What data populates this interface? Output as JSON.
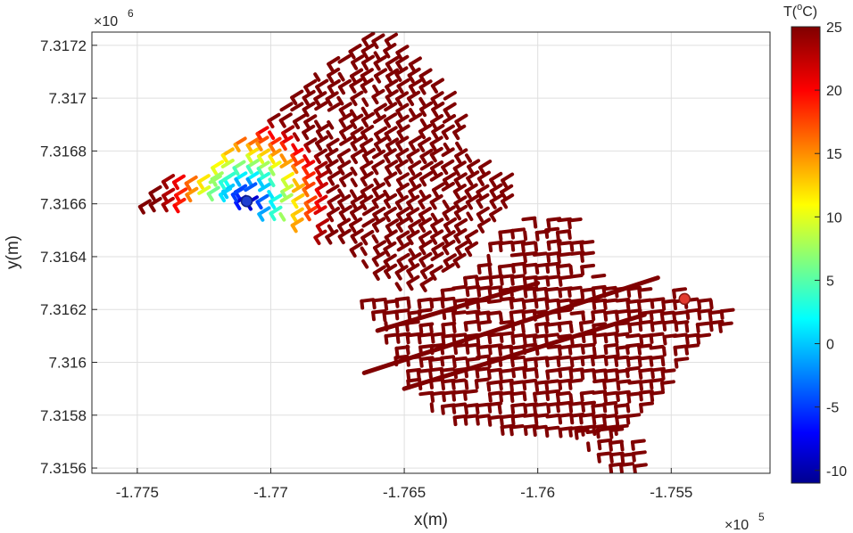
{
  "chart_data": {
    "type": "heatmap",
    "xlabel": "x(m)",
    "ylabel": "y(m)",
    "x_multiplier": {
      "base": "×10",
      "exp": "5"
    },
    "y_multiplier": {
      "base": "×10",
      "exp": "6"
    },
    "xlim": [
      -1.7767,
      -1.7513
    ],
    "ylim": [
      7.31558,
      7.31725
    ],
    "xticks": [
      -1.775,
      -1.77,
      -1.765,
      -1.76,
      -1.755
    ],
    "xtick_labels": [
      "-1.775",
      "-1.77",
      "-1.765",
      "-1.76",
      "-1.755"
    ],
    "yticks": [
      7.3156,
      7.3158,
      7.316,
      7.3162,
      7.3164,
      7.3166,
      7.3168,
      7.317,
      7.3172
    ],
    "ytick_labels": [
      "7.3156",
      "7.3158",
      "7.316",
      "7.3162",
      "7.3164",
      "7.3166",
      "7.3168",
      "7.317",
      "7.3172"
    ],
    "grid": true,
    "colorbar": {
      "title_base": "T(",
      "title_sup": "o",
      "title_end": "C)",
      "colormap": "jet",
      "range": [
        -11,
        25
      ],
      "ticks": [
        25,
        20,
        15,
        10,
        5,
        0,
        -5,
        -10
      ],
      "tick_labels": [
        "25",
        "20",
        "15",
        "10",
        "5",
        "0",
        "-5",
        "-10"
      ]
    },
    "network": {
      "description": "pipe network coloured by temperature",
      "base_temperature": 25,
      "cold_source": {
        "x": -1.7709,
        "y": 7.31661,
        "temperature": -11,
        "marker_color": "#1f3fd0"
      },
      "hot_source": {
        "x": -1.7545,
        "y": 7.31624,
        "temperature": 25,
        "marker_color": "#e23b2e"
      },
      "cold_plume_radius": 0.0033,
      "regions": [
        {
          "name": "north-west",
          "polygon": [
            [
              -1.7726,
              7.31674
            ],
            [
              -1.7705,
              7.31688
            ],
            [
              -1.769,
              7.31703
            ],
            [
              -1.768,
              7.31713
            ],
            [
              -1.7668,
              7.3172
            ],
            [
              -1.7661,
              7.31726
            ],
            [
              -1.7643,
              7.31711
            ],
            [
              -1.7633,
              7.317
            ],
            [
              -1.7626,
              7.31678
            ],
            [
              -1.761,
              7.31669
            ],
            [
              -1.7614,
              7.31656
            ],
            [
              -1.7622,
              7.3165
            ],
            [
              -1.7627,
              7.3164
            ],
            [
              -1.7645,
              7.31628
            ],
            [
              -1.7663,
              7.31632
            ],
            [
              -1.7672,
              7.31642
            ],
            [
              -1.77,
              7.31654
            ],
            [
              -1.7716,
              7.3166
            ]
          ]
        },
        {
          "name": "west-arm",
          "polygon": [
            [
              -1.7753,
              7.31665
            ],
            [
              -1.7734,
              7.3167
            ],
            [
              -1.7716,
              7.31672
            ],
            [
              -1.7713,
              7.31662
            ],
            [
              -1.773,
              7.3166
            ],
            [
              -1.775,
              7.31656
            ]
          ]
        },
        {
          "name": "south-east",
          "polygon": [
            [
              -1.767,
              7.31624
            ],
            [
              -1.7645,
              7.31626
            ],
            [
              -1.7628,
              7.31632
            ],
            [
              -1.7617,
              7.31648
            ],
            [
              -1.76,
              7.31658
            ],
            [
              -1.7585,
              7.31655
            ],
            [
              -1.7578,
              7.3163
            ],
            [
              -1.756,
              7.31627
            ],
            [
              -1.7552,
              7.31628
            ],
            [
              -1.7535,
              7.31627
            ],
            [
              -1.7528,
              7.31618
            ],
            [
              -1.7548,
              7.31598
            ],
            [
              -1.756,
              7.31584
            ],
            [
              -1.757,
              7.31571
            ],
            [
              -1.7585,
              7.31574
            ],
            [
              -1.76,
              7.31573
            ],
            [
              -1.764,
              7.3158
            ],
            [
              -1.765,
              7.31592
            ],
            [
              -1.7658,
              7.3161
            ]
          ]
        },
        {
          "name": "south-tail",
          "polygon": [
            [
              -1.759,
              7.31578
            ],
            [
              -1.756,
              7.31572
            ],
            [
              -1.7563,
              7.3156
            ],
            [
              -1.7574,
              7.31558
            ]
          ]
        }
      ]
    }
  }
}
